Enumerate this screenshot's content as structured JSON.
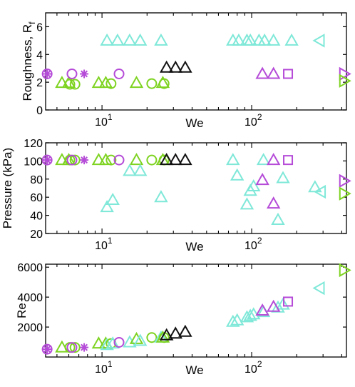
{
  "colors": {
    "cyan": "#7fe8d8",
    "purple": "#b54bd8",
    "green": "#7ed321",
    "black": "#111111"
  },
  "chart_data": [
    {
      "id": "roughness",
      "type": "scatter",
      "xscale": "log",
      "xlim": [
        4.2,
        430
      ],
      "ylim": [
        0,
        7
      ],
      "xlabel": "We",
      "ylabel": "Roughness, R",
      "ylabel_sub": "f",
      "y_ticks": [
        0,
        2,
        4,
        6
      ],
      "x_tick_labels": [
        {
          "base": "10",
          "exp": "1"
        },
        {
          "base": "10",
          "exp": "2"
        }
      ],
      "points": [
        {
          "x": 4.3,
          "y": 2.6,
          "color": "purple",
          "marker": "circle"
        },
        {
          "x": 4.3,
          "y": 2.6,
          "color": "purple",
          "marker": "asterisk"
        },
        {
          "x": 5.4,
          "y": 1.95,
          "color": "green",
          "marker": "triangle"
        },
        {
          "x": 6.0,
          "y": 1.95,
          "color": "green",
          "marker": "triangle"
        },
        {
          "x": 6.1,
          "y": 1.85,
          "color": "green",
          "marker": "circle"
        },
        {
          "x": 6.6,
          "y": 1.85,
          "color": "green",
          "marker": "circle"
        },
        {
          "x": 6.3,
          "y": 2.6,
          "color": "purple",
          "marker": "circle"
        },
        {
          "x": 7.6,
          "y": 2.6,
          "color": "purple",
          "marker": "asterisk"
        },
        {
          "x": 9.5,
          "y": 1.95,
          "color": "green",
          "marker": "triangle"
        },
        {
          "x": 10.6,
          "y": 1.95,
          "color": "green",
          "marker": "triangle"
        },
        {
          "x": 11.5,
          "y": 1.9,
          "color": "green",
          "marker": "circle"
        },
        {
          "x": 13.0,
          "y": 2.6,
          "color": "purple",
          "marker": "circle"
        },
        {
          "x": 17.0,
          "y": 1.95,
          "color": "green",
          "marker": "triangle"
        },
        {
          "x": 21.5,
          "y": 1.9,
          "color": "green",
          "marker": "circle"
        },
        {
          "x": 25.5,
          "y": 1.95,
          "color": "green",
          "marker": "triangle"
        },
        {
          "x": 26.0,
          "y": 1.9,
          "color": "green",
          "marker": "circle"
        },
        {
          "x": 10.8,
          "y": 5.0,
          "color": "cyan",
          "marker": "triangle"
        },
        {
          "x": 12.7,
          "y": 5.0,
          "color": "cyan",
          "marker": "triangle"
        },
        {
          "x": 15.3,
          "y": 5.0,
          "color": "cyan",
          "marker": "triangle"
        },
        {
          "x": 18.0,
          "y": 5.0,
          "color": "cyan",
          "marker": "triangle"
        },
        {
          "x": 24.8,
          "y": 5.0,
          "color": "cyan",
          "marker": "triangle"
        },
        {
          "x": 27.0,
          "y": 3.05,
          "color": "black",
          "marker": "triangle"
        },
        {
          "x": 31.0,
          "y": 3.05,
          "color": "black",
          "marker": "triangle"
        },
        {
          "x": 36.0,
          "y": 3.05,
          "color": "black",
          "marker": "triangle"
        },
        {
          "x": 75.0,
          "y": 5.0,
          "color": "cyan",
          "marker": "triangle"
        },
        {
          "x": 82.0,
          "y": 5.0,
          "color": "cyan",
          "marker": "triangle"
        },
        {
          "x": 93.0,
          "y": 5.0,
          "color": "cyan",
          "marker": "triangle"
        },
        {
          "x": 98.0,
          "y": 5.0,
          "color": "cyan",
          "marker": "triangle"
        },
        {
          "x": 112.0,
          "y": 5.0,
          "color": "cyan",
          "marker": "triangle"
        },
        {
          "x": 122.0,
          "y": 5.0,
          "color": "cyan",
          "marker": "triangle"
        },
        {
          "x": 140.0,
          "y": 5.0,
          "color": "cyan",
          "marker": "triangle"
        },
        {
          "x": 185.0,
          "y": 5.0,
          "color": "cyan",
          "marker": "triangle"
        },
        {
          "x": 118.0,
          "y": 2.6,
          "color": "purple",
          "marker": "triangle"
        },
        {
          "x": 140.0,
          "y": 2.6,
          "color": "purple",
          "marker": "triangle"
        },
        {
          "x": 175.0,
          "y": 2.6,
          "color": "purple",
          "marker": "square"
        },
        {
          "x": 285.0,
          "y": 5.0,
          "color": "cyan",
          "marker": "triangle-left"
        },
        {
          "x": 415.0,
          "y": 2.6,
          "color": "purple",
          "marker": "triangle-right"
        },
        {
          "x": 415.0,
          "y": 2.1,
          "color": "green",
          "marker": "triangle-right"
        }
      ]
    },
    {
      "id": "pressure",
      "type": "scatter",
      "xscale": "log",
      "xlim": [
        4.2,
        430
      ],
      "ylim": [
        20,
        120
      ],
      "xlabel": "We",
      "ylabel": "Pressure (kPa)",
      "y_ticks": [
        20,
        40,
        60,
        80,
        100,
        120
      ],
      "x_tick_labels": [
        {
          "base": "10",
          "exp": "1"
        },
        {
          "base": "10",
          "exp": "2"
        }
      ],
      "points": [
        {
          "x": 4.3,
          "y": 101,
          "color": "purple",
          "marker": "circle"
        },
        {
          "x": 4.3,
          "y": 101,
          "color": "purple",
          "marker": "asterisk"
        },
        {
          "x": 5.4,
          "y": 101,
          "color": "green",
          "marker": "triangle"
        },
        {
          "x": 6.0,
          "y": 101,
          "color": "green",
          "marker": "triangle"
        },
        {
          "x": 6.1,
          "y": 101,
          "color": "green",
          "marker": "circle"
        },
        {
          "x": 6.6,
          "y": 101,
          "color": "green",
          "marker": "circle"
        },
        {
          "x": 6.3,
          "y": 101,
          "color": "purple",
          "marker": "circle"
        },
        {
          "x": 7.6,
          "y": 101,
          "color": "purple",
          "marker": "asterisk"
        },
        {
          "x": 9.5,
          "y": 101,
          "color": "green",
          "marker": "triangle"
        },
        {
          "x": 10.6,
          "y": 101,
          "color": "green",
          "marker": "triangle"
        },
        {
          "x": 11.5,
          "y": 101,
          "color": "green",
          "marker": "circle"
        },
        {
          "x": 13.0,
          "y": 101,
          "color": "purple",
          "marker": "circle"
        },
        {
          "x": 17.0,
          "y": 101,
          "color": "green",
          "marker": "triangle"
        },
        {
          "x": 21.5,
          "y": 101,
          "color": "green",
          "marker": "circle"
        },
        {
          "x": 25.5,
          "y": 101,
          "color": "green",
          "marker": "triangle"
        },
        {
          "x": 26.0,
          "y": 101,
          "color": "green",
          "marker": "circle"
        },
        {
          "x": 10.8,
          "y": 49,
          "color": "cyan",
          "marker": "triangle"
        },
        {
          "x": 11.8,
          "y": 57,
          "color": "cyan",
          "marker": "triangle"
        },
        {
          "x": 15.3,
          "y": 89,
          "color": "cyan",
          "marker": "triangle"
        },
        {
          "x": 18.0,
          "y": 89,
          "color": "cyan",
          "marker": "triangle"
        },
        {
          "x": 24.8,
          "y": 60,
          "color": "cyan",
          "marker": "triangle"
        },
        {
          "x": 27.0,
          "y": 101,
          "color": "black",
          "marker": "triangle"
        },
        {
          "x": 31.0,
          "y": 101,
          "color": "black",
          "marker": "triangle"
        },
        {
          "x": 36.0,
          "y": 101,
          "color": "black",
          "marker": "triangle"
        },
        {
          "x": 75.0,
          "y": 101,
          "color": "cyan",
          "marker": "triangle"
        },
        {
          "x": 80.0,
          "y": 84,
          "color": "cyan",
          "marker": "triangle"
        },
        {
          "x": 93.0,
          "y": 52,
          "color": "cyan",
          "marker": "triangle"
        },
        {
          "x": 98.0,
          "y": 67,
          "color": "cyan",
          "marker": "triangle"
        },
        {
          "x": 103.0,
          "y": 72,
          "color": "cyan",
          "marker": "triangle"
        },
        {
          "x": 120.0,
          "y": 101,
          "color": "cyan",
          "marker": "triangle"
        },
        {
          "x": 150.0,
          "y": 35,
          "color": "cyan",
          "marker": "triangle"
        },
        {
          "x": 162.0,
          "y": 81,
          "color": "cyan",
          "marker": "triangle"
        },
        {
          "x": 118.0,
          "y": 79,
          "color": "purple",
          "marker": "triangle"
        },
        {
          "x": 140.0,
          "y": 101,
          "color": "purple",
          "marker": "triangle"
        },
        {
          "x": 140.0,
          "y": 53,
          "color": "purple",
          "marker": "triangle"
        },
        {
          "x": 175.0,
          "y": 101,
          "color": "purple",
          "marker": "square"
        },
        {
          "x": 265.0,
          "y": 71,
          "color": "cyan",
          "marker": "triangle"
        },
        {
          "x": 290.0,
          "y": 66,
          "color": "cyan",
          "marker": "triangle-left"
        },
        {
          "x": 415.0,
          "y": 78,
          "color": "purple",
          "marker": "triangle-right"
        },
        {
          "x": 415.0,
          "y": 64,
          "color": "green",
          "marker": "triangle-right"
        }
      ]
    },
    {
      "id": "reynolds",
      "type": "scatter",
      "xscale": "log",
      "xlim": [
        4.2,
        430
      ],
      "ylim": [
        0,
        6200
      ],
      "xlabel": "We",
      "ylabel": "Re",
      "y_ticks": [
        2000,
        4000,
        6000
      ],
      "x_tick_labels": [
        {
          "base": "10",
          "exp": "1"
        },
        {
          "base": "10",
          "exp": "2"
        }
      ],
      "points": [
        {
          "x": 4.3,
          "y": 520,
          "color": "purple",
          "marker": "circle"
        },
        {
          "x": 4.3,
          "y": 520,
          "color": "purple",
          "marker": "asterisk"
        },
        {
          "x": 5.4,
          "y": 640,
          "color": "green",
          "marker": "triangle"
        },
        {
          "x": 6.1,
          "y": 640,
          "color": "green",
          "marker": "circle"
        },
        {
          "x": 6.6,
          "y": 640,
          "color": "green",
          "marker": "circle"
        },
        {
          "x": 6.3,
          "y": 640,
          "color": "purple",
          "marker": "circle"
        },
        {
          "x": 7.6,
          "y": 640,
          "color": "purple",
          "marker": "asterisk"
        },
        {
          "x": 9.5,
          "y": 900,
          "color": "green",
          "marker": "triangle"
        },
        {
          "x": 10.6,
          "y": 900,
          "color": "green",
          "marker": "triangle"
        },
        {
          "x": 10.8,
          "y": 800,
          "color": "cyan",
          "marker": "triangle"
        },
        {
          "x": 11.5,
          "y": 900,
          "color": "green",
          "marker": "circle"
        },
        {
          "x": 11.8,
          "y": 900,
          "color": "cyan",
          "marker": "triangle"
        },
        {
          "x": 13.0,
          "y": 980,
          "color": "purple",
          "marker": "circle"
        },
        {
          "x": 15.3,
          "y": 980,
          "color": "cyan",
          "marker": "triangle"
        },
        {
          "x": 17.0,
          "y": 1200,
          "color": "green",
          "marker": "triangle"
        },
        {
          "x": 18.0,
          "y": 1080,
          "color": "cyan",
          "marker": "triangle"
        },
        {
          "x": 21.5,
          "y": 1300,
          "color": "green",
          "marker": "circle"
        },
        {
          "x": 24.8,
          "y": 1300,
          "color": "cyan",
          "marker": "triangle"
        },
        {
          "x": 25.5,
          "y": 1300,
          "color": "green",
          "marker": "triangle"
        },
        {
          "x": 26.0,
          "y": 1300,
          "color": "green",
          "marker": "circle"
        },
        {
          "x": 27.0,
          "y": 1450,
          "color": "black",
          "marker": "triangle"
        },
        {
          "x": 31.0,
          "y": 1560,
          "color": "black",
          "marker": "triangle"
        },
        {
          "x": 36.0,
          "y": 1680,
          "color": "black",
          "marker": "triangle"
        },
        {
          "x": 75.0,
          "y": 2350,
          "color": "cyan",
          "marker": "triangle"
        },
        {
          "x": 80.0,
          "y": 2450,
          "color": "cyan",
          "marker": "triangle"
        },
        {
          "x": 93.0,
          "y": 2650,
          "color": "cyan",
          "marker": "triangle"
        },
        {
          "x": 98.0,
          "y": 2750,
          "color": "cyan",
          "marker": "triangle"
        },
        {
          "x": 103.0,
          "y": 2850,
          "color": "cyan",
          "marker": "triangle"
        },
        {
          "x": 120.0,
          "y": 3000,
          "color": "cyan",
          "marker": "triangle"
        },
        {
          "x": 150.0,
          "y": 3300,
          "color": "cyan",
          "marker": "triangle"
        },
        {
          "x": 162.0,
          "y": 3500,
          "color": "cyan",
          "marker": "triangle"
        },
        {
          "x": 118.0,
          "y": 3100,
          "color": "purple",
          "marker": "triangle"
        },
        {
          "x": 140.0,
          "y": 3350,
          "color": "purple",
          "marker": "triangle"
        },
        {
          "x": 175.0,
          "y": 3700,
          "color": "purple",
          "marker": "square"
        },
        {
          "x": 285.0,
          "y": 4600,
          "color": "cyan",
          "marker": "triangle-left"
        },
        {
          "x": 415.0,
          "y": 5800,
          "color": "green",
          "marker": "triangle-right"
        }
      ]
    }
  ]
}
